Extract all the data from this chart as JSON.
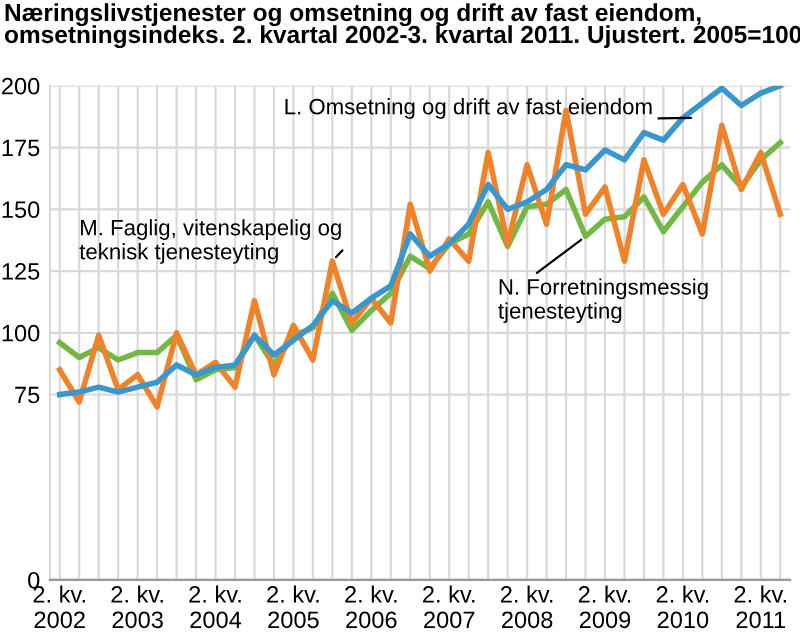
{
  "chart_data": {
    "type": "line",
    "title": "Næringslivstjenester og omsetning og drift av fast eiendom,\nomsetningsindeks. 2. kvartal 2002-3. kvartal 2011. Ujustert. 2005=100",
    "categories": [
      "2. kv.\n2002",
      null,
      null,
      null,
      "2. kv.\n2003",
      null,
      null,
      null,
      "2. kv.\n2004",
      null,
      null,
      null,
      "2. kv.\n2005",
      null,
      null,
      null,
      "2. kv.\n2006",
      null,
      null,
      null,
      "2. kv.\n2007",
      null,
      null,
      null,
      "2. kv.\n2008",
      null,
      null,
      null,
      "2. kv.\n2009",
      null,
      null,
      null,
      "2. kv.\n2010",
      null,
      null,
      null,
      "2. kv.\n2011",
      null
    ],
    "series": [
      {
        "name": "N. Forretningsmessig\ntjenesteyting",
        "color": "#72b844",
        "values": [
          96,
          90,
          94,
          89,
          92,
          92,
          99,
          81,
          85,
          86,
          99,
          87,
          99,
          102,
          116,
          101,
          109,
          116,
          131,
          126,
          136,
          140,
          153,
          135,
          151,
          152,
          158,
          139,
          146,
          147,
          155,
          141,
          151,
          161,
          168,
          159,
          170,
          177
        ]
      },
      {
        "name": "M. Faglig, vitenskapelig og\nteknisk tjenesteyting",
        "color": "#f0832a",
        "values": [
          85,
          72,
          99,
          77,
          83,
          70,
          100,
          83,
          88,
          78,
          113,
          83,
          103,
          89,
          129,
          104,
          114,
          104,
          152,
          125,
          138,
          129,
          173,
          136,
          168,
          144,
          190,
          148,
          159,
          129,
          170,
          148,
          160,
          140,
          184,
          158,
          173,
          148
        ]
      },
      {
        "name": "L. Omsetning og drift av fast eiendom",
        "color": "#3a96cc",
        "values": [
          75,
          76,
          78,
          76,
          78,
          80,
          87,
          83,
          86,
          87,
          99,
          91,
          97,
          103,
          113,
          108,
          114,
          119,
          140,
          131,
          136,
          144,
          160,
          150,
          153,
          158,
          168,
          166,
          174,
          170,
          181,
          178,
          187,
          193,
          199,
          192,
          197,
          200
        ]
      }
    ],
    "ylim": [
      0,
      200
    ],
    "yticks": [
      0,
      75,
      100,
      125,
      150,
      175,
      200
    ],
    "grid": true,
    "marker": "none",
    "line_style": "solid",
    "legend": false
  }
}
